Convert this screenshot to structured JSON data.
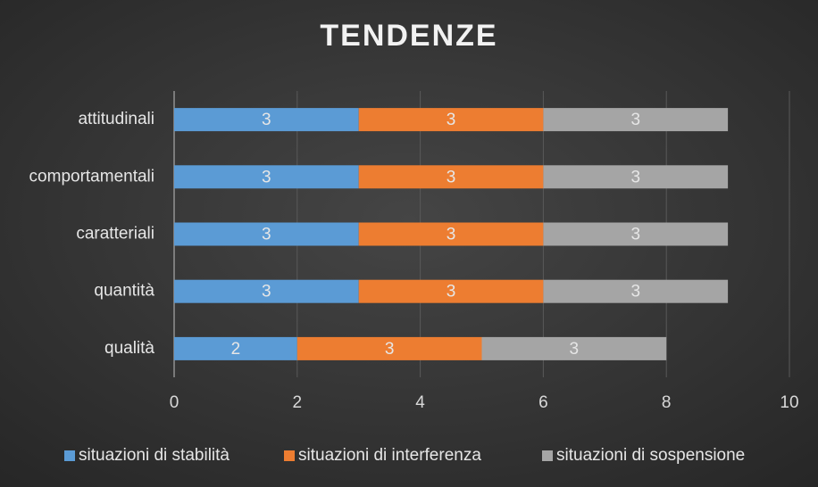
{
  "chart_data": {
    "type": "stacked_barh",
    "title": "TENDENZE",
    "categories": [
      "attitudinali",
      "comportamentali",
      "caratteriali",
      "quantità",
      "qualità"
    ],
    "series": [
      {
        "name": "situazioni di stabilità",
        "color": "#5b9bd5",
        "values": [
          3,
          3,
          3,
          3,
          2
        ]
      },
      {
        "name": "situazioni di interferenza",
        "color": "#ed7d31",
        "values": [
          3,
          3,
          3,
          3,
          3
        ]
      },
      {
        "name": "situazioni di sospensione",
        "color": "#a5a5a5",
        "values": [
          3,
          3,
          3,
          3,
          3
        ]
      }
    ],
    "xlim": [
      0,
      10
    ],
    "xticks": [
      0,
      2,
      4,
      6,
      8,
      10
    ],
    "grid": true,
    "legend": "bottom"
  }
}
